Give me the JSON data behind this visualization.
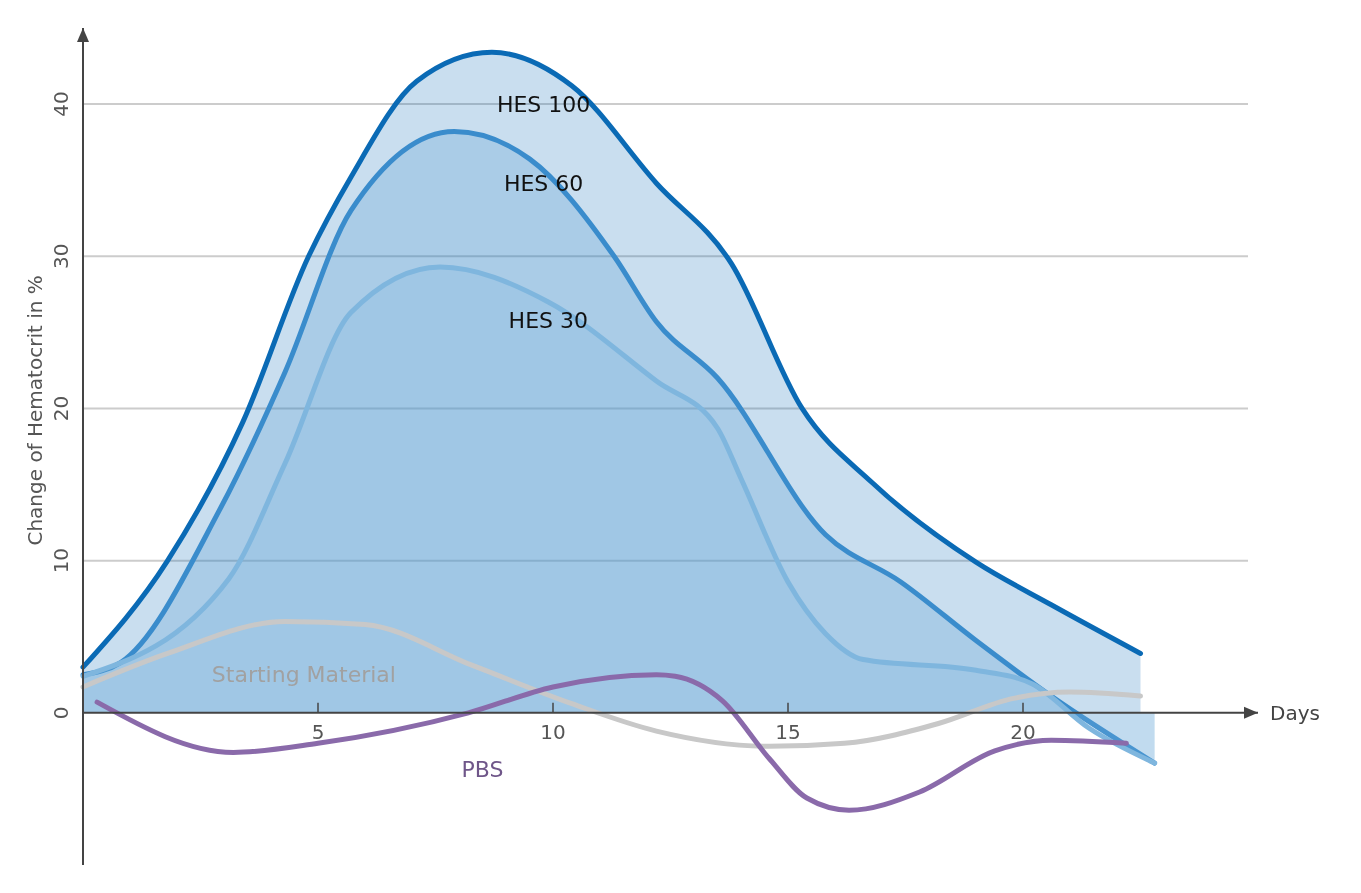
{
  "chart_data": {
    "type": "line",
    "ylabel": "Change of Hematocrit in %",
    "xlabel": "Days",
    "xlim": [
      0,
      25
    ],
    "ylim": [
      -10,
      45
    ],
    "xticks": [
      5,
      10,
      15,
      20
    ],
    "yticks": [
      0,
      10,
      20,
      30,
      40
    ],
    "grid": "y",
    "legend": false,
    "series": [
      {
        "name": "HES 100",
        "type": "area",
        "color": "#0a6ab5",
        "x": [
          0,
          1.8,
          3.4,
          4.8,
          5.7,
          7.1,
          8.7,
          10.4,
          12.2,
          13.8,
          15.3,
          16.8,
          19,
          20.6,
          22.5
        ],
        "values": [
          3,
          10,
          19.1,
          30,
          35.2,
          41.5,
          43.4,
          41.2,
          34.8,
          29.5,
          20,
          15.1,
          9.9,
          7.1,
          3.9
        ]
      },
      {
        "name": "HES 60",
        "type": "area",
        "color": "#3a8ccc",
        "x": [
          0,
          0.8,
          2.9,
          4.3,
          5.7,
          7.9,
          9.5,
          11.3,
          12.2,
          13.5,
          15.8,
          17.4,
          19,
          20.6,
          22.8
        ],
        "values": [
          2.5,
          3.3,
          13.3,
          22.4,
          33,
          38.2,
          36.4,
          30,
          25.7,
          22,
          11.7,
          8.6,
          4.75,
          1.1,
          -3.3
        ]
      },
      {
        "name": "HES 30",
        "type": "area",
        "color": "#7fb6de",
        "x": [
          0,
          3.1,
          4.3,
          5.7,
          7.6,
          9.9,
          12.2,
          13.5,
          14,
          15,
          15.8,
          16.6,
          19,
          20.2,
          21.4,
          22.8
        ],
        "values": [
          2.4,
          8.8,
          16.4,
          26.3,
          29.3,
          27,
          21.8,
          18.7,
          15.4,
          8.6,
          5.2,
          3.5,
          2.8,
          1.9,
          -1,
          -3.3
        ]
      },
      {
        "name": "Starting Material",
        "type": "line",
        "color": "#c8c8c8",
        "x": [
          0,
          1.8,
          4.3,
          6,
          8.3,
          10.4,
          12.2,
          14.6,
          16.2,
          18.2,
          19.8,
          21,
          22.5
        ],
        "values": [
          1.7,
          3.9,
          6,
          5.8,
          3.1,
          0.6,
          -1.2,
          -2.2,
          -2,
          -0.7,
          0.95,
          1.36,
          1.1
        ]
      },
      {
        "name": "PBS",
        "type": "line",
        "color": "#8a6aaa",
        "x": [
          0.3,
          3.2,
          5,
          8.2,
          10,
          12.2,
          12.6,
          13.6,
          14.6,
          15.4,
          16.3,
          17.8,
          19.4,
          20.6,
          22.2
        ],
        "values": [
          0.7,
          -2.6,
          -2,
          0,
          1.7,
          2.5,
          2.4,
          0.8,
          -3,
          -5.6,
          -6.4,
          -5.2,
          -2.5,
          -1.8,
          -2
        ]
      }
    ]
  }
}
